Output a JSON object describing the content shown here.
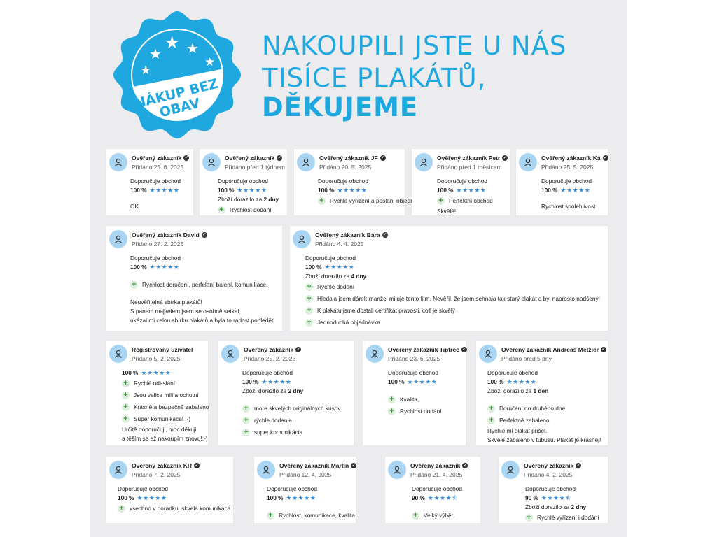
{
  "badge": {
    "text": "NÁKUP BEZ OBAV",
    "color": "#1fa7df"
  },
  "headline": {
    "line1": "NAKOUPILI JSTE U NÁS",
    "line2": "TISÍCE PLAKÁTŮ,",
    "line3": "DĚKUJEME"
  },
  "colors": {
    "accent": "#1fa7df",
    "star": "#3f8fd8",
    "avatar": "#a9d5f2",
    "plus": "#3a9a3a"
  },
  "reviews": [
    {
      "name": "Ověřený zákazník",
      "verified": true,
      "date": "Přidáno 25. 6. 2025",
      "recommend": "Doporučuje obchod",
      "rating": 100,
      "rating_label": "100 %",
      "pros": [],
      "text": [
        "OK"
      ]
    },
    {
      "name": "Ověřený zákazník",
      "verified": true,
      "date": "Přidáno před 1 týdnem",
      "recommend": "Doporučuje obchod",
      "rating": 100,
      "rating_label": "100 %",
      "delivery": "Zboží dorazilo za ",
      "delivery_days": "2 dny",
      "pros": [
        "Rychlost dodání"
      ],
      "text": []
    },
    {
      "name": "Ověřený zákazník JF",
      "verified": true,
      "date": "Přidáno 20. 5. 2025",
      "recommend": "Doporučuje obchod",
      "rating": 100,
      "rating_label": "100 %",
      "pros": [
        "Rychlé vyřízení a poslaní objednávky"
      ],
      "text": []
    },
    {
      "name": "Ověřený zákazník Petr",
      "verified": true,
      "date": "Přidáno před 1 měsícem",
      "recommend": "Doporučuje obchod",
      "rating": 100,
      "rating_label": "100 %",
      "pros": [
        "Perfektní obchod"
      ],
      "text": [
        "Skvělé!"
      ]
    },
    {
      "name": "Ověřený zákazník Ká",
      "verified": true,
      "date": "Přidáno 25. 5. 2025",
      "recommend": "Doporučuje obchod",
      "rating": 100,
      "rating_label": "100 %",
      "pros": [],
      "text": [
        "Rychlost spolehlivost"
      ]
    },
    {
      "name": "Ověřený zákazník David",
      "verified": true,
      "date": "Přidáno 27. 2. 2025",
      "recommend": "Doporučuje obchod",
      "rating": 100,
      "rating_label": "100 %",
      "pros": [
        "Rychlost doručení, perfektní balení, komunikace."
      ],
      "text": [
        "Neuvěřitelná sbírka plakátů!",
        "S panem majitelem jsem se osobně setkal,",
        "ukázal mi celou sbírku plakátů a byla to radost pohledět!"
      ]
    },
    {
      "name": "Ověřený zákazník Bára",
      "verified": true,
      "date": "Přidáno 4. 4. 2025",
      "recommend": "Doporučuje obchod",
      "rating": 100,
      "rating_label": "100 %",
      "delivery": "Zboží dorazilo za ",
      "delivery_days": "4 dny",
      "pros": [
        "Rychlé dodání",
        "Hledala jsem dárek-manžel miluje tento film. Nevěřil, že jsem sehnala tak starý plakát a byl naprosto nadšený!",
        "K plakátu jsme dostali certifikát pravosti, což je skvělý",
        "Jednoduchá objednávka"
      ],
      "text": []
    },
    {
      "name": "Registrovaný uživatel",
      "verified": false,
      "date": "Přidáno 5. 2. 2025",
      "rating": 100,
      "rating_label": "100 %",
      "pros": [
        "Rychlé odeslání",
        "Jsou velice milí a ochotní",
        "Krásně a bezpečně zabaleno",
        "Super komunikace! :-)"
      ],
      "text": [
        "Určitě doporučuji, moc děkuji",
        "a těším se až nakoupím znovu!:-)"
      ]
    },
    {
      "name": "Ověřený zákazník",
      "verified": true,
      "date": "Přidáno 25. 2. 2025",
      "recommend": "Doporučuje obchod",
      "rating": 100,
      "rating_label": "100 %",
      "delivery": "Zboží dorazilo za ",
      "delivery_days": "2 dny",
      "pros": [
        "more skvelých originálnych kúsov",
        "rýchle dodanie",
        "super komunikácia"
      ],
      "text": []
    },
    {
      "name": "Ověřený zákazník Tiptree",
      "verified": true,
      "date": "Přidáno 23. 6. 2025",
      "recommend": "Doporučuje obchod",
      "rating": 100,
      "rating_label": "100 %",
      "pros": [
        "Kvalita,",
        "Rychlost dodání"
      ],
      "text": []
    },
    {
      "name": "Ověřený zákazník Andreas Metzler",
      "verified": true,
      "date": "Přidáno před 5 dny",
      "recommend": "Doporučuje obchod",
      "rating": 100,
      "rating_label": "100 %",
      "delivery": "Zboží dorazilo za ",
      "delivery_days": "1 den",
      "pros": [
        "Doručení do druhého dne",
        "Perfektně zabaleno"
      ],
      "text": [
        "Rychle mi plakát přišel.",
        "Skvěle zabaleno v tubusu. Plakát je krásnej!"
      ]
    },
    {
      "name": "Ověřený zákazník KR",
      "verified": true,
      "date": "Přidáno 7. 2. 2025",
      "recommend": "Doporučuje obchod",
      "rating": 100,
      "rating_label": "100 %",
      "pros": [
        "vsechno v poradku, skvela komunikace"
      ],
      "text": []
    },
    {
      "name": "Ověřený zákazník Martin",
      "verified": true,
      "date": "Přidáno 12. 4. 2025",
      "recommend": "Doporučuje obchod",
      "rating": 100,
      "rating_label": "100 %",
      "pros": [
        "Rychlost, komunikace, kvalita"
      ],
      "text": []
    },
    {
      "name": "Ověřený zákazník",
      "verified": true,
      "date": "Přidáno 21. 4. 2025",
      "recommend": "Doporučuje obchod",
      "rating": 90,
      "rating_label": "90 %",
      "pros": [
        "Velký výběr."
      ],
      "text": []
    },
    {
      "name": "Ověřený zákazník",
      "verified": true,
      "date": "Přidáno 4. 2. 2025",
      "recommend": "Doporučuje obchod",
      "rating": 90,
      "rating_label": "90 %",
      "delivery": "Zboží dorazilo za ",
      "delivery_days": "2 dny",
      "pros": [
        "Rychlé vyřízení i dodání"
      ],
      "text": []
    }
  ]
}
